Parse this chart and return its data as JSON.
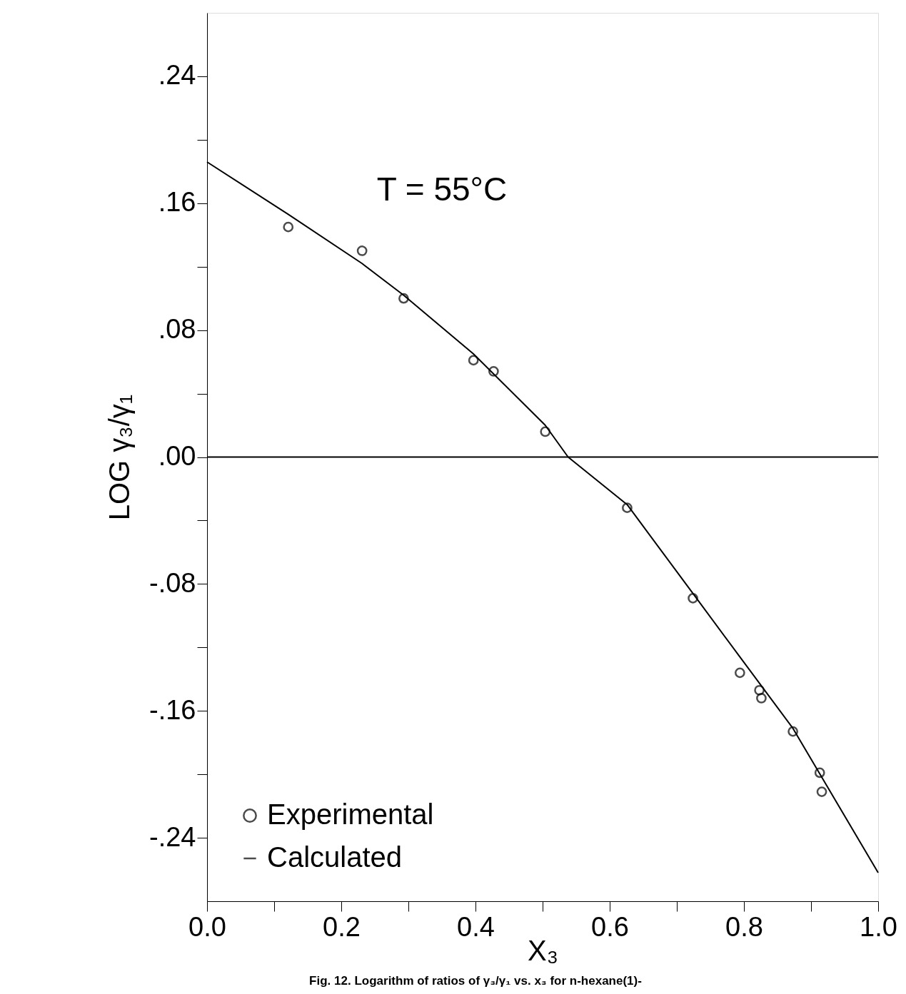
{
  "chart_data": {
    "type": "scatter",
    "title": null,
    "xlabel": "X₃",
    "ylabel": "LOG γ₃/γ₁",
    "annotations": [
      "T = 55°C",
      "Fig. 12. Logarithm of ratios of γ₃/γ₁ vs. x₃ for n-hexane(1)-"
    ],
    "series": [
      {
        "name": "Experimental",
        "type": "scatter",
        "color": "#000000",
        "marker": "circle",
        "x": [
          0.121,
          0.231,
          0.293,
          0.397,
          0.427,
          0.504,
          0.626,
          0.724,
          0.794,
          0.823,
          0.826,
          0.873,
          0.913,
          0.916
        ],
        "values": [
          0.145,
          0.13,
          0.1,
          0.061,
          0.054,
          0.016,
          -0.032,
          -0.089,
          -0.136,
          -0.147,
          -0.152,
          -0.173,
          -0.199,
          -0.211
        ]
      },
      {
        "name": "Calculated",
        "type": "line",
        "color": "#000000",
        "marker": "none",
        "line_style": "solid",
        "x": [
          0.0,
          0.121,
          0.231,
          0.293,
          0.397,
          0.504,
          0.538,
          0.626,
          0.724,
          0.794,
          0.873,
          1.0
        ],
        "values": [
          0.186,
          0.153,
          0.122,
          0.102,
          0.065,
          0.02,
          0.0,
          -0.03,
          -0.086,
          -0.126,
          -0.171,
          -0.262
        ]
      }
    ],
    "xlim": [
      0.0,
      1.0
    ],
    "xticks": [
      {
        "value": 0.0,
        "label": "0.0"
      },
      {
        "value": 0.1,
        "label": null
      },
      {
        "value": 0.2,
        "label": "0.2"
      },
      {
        "value": 0.3,
        "label": null
      },
      {
        "value": 0.4,
        "label": "0.4"
      },
      {
        "value": 0.5,
        "label": null
      },
      {
        "value": 0.6,
        "label": "0.6"
      },
      {
        "value": 0.7,
        "label": null
      },
      {
        "value": 0.8,
        "label": "0.8"
      },
      {
        "value": 0.9,
        "label": null
      },
      {
        "value": 1.0,
        "label": "1.0"
      }
    ],
    "ylim": [
      -0.28,
      0.28
    ],
    "yticks": [
      {
        "value": -0.24,
        "label": "-.24"
      },
      {
        "value": -0.2,
        "label": null
      },
      {
        "value": -0.16,
        "label": "-.16"
      },
      {
        "value": -0.12,
        "label": null
      },
      {
        "value": -0.08,
        "label": "-.08"
      },
      {
        "value": -0.04,
        "label": null
      },
      {
        "value": 0.0,
        "label": ".00"
      },
      {
        "value": 0.04,
        "label": null
      },
      {
        "value": 0.08,
        "label": ".08"
      },
      {
        "value": 0.12,
        "label": null
      },
      {
        "value": 0.16,
        "label": ".16"
      },
      {
        "value": 0.2,
        "label": null
      },
      {
        "value": 0.24,
        "label": ".24"
      }
    ],
    "ref_lines": [
      {
        "axis": "y",
        "value": 0.0,
        "label": null,
        "color": "#000000",
        "line_style": "solid"
      }
    ],
    "grid": false,
    "legend": "bottom left"
  }
}
